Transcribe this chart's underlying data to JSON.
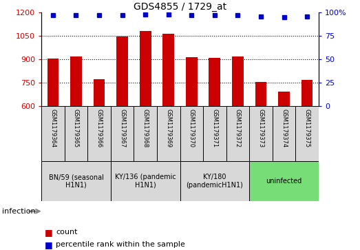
{
  "title": "GDS4855 / 1729_at",
  "samples": [
    "GSM1179364",
    "GSM1179365",
    "GSM1179366",
    "GSM1179367",
    "GSM1179368",
    "GSM1179369",
    "GSM1179370",
    "GSM1179371",
    "GSM1179372",
    "GSM1179373",
    "GSM1179374",
    "GSM1179375"
  ],
  "counts": [
    905,
    920,
    775,
    1045,
    1080,
    1065,
    915,
    910,
    920,
    755,
    695,
    770
  ],
  "percentiles": [
    97,
    97,
    97,
    97,
    98,
    98,
    97,
    97,
    97,
    96,
    95,
    96
  ],
  "ylim_left": [
    600,
    1200
  ],
  "ylim_right": [
    0,
    100
  ],
  "yticks_left": [
    600,
    750,
    900,
    1050,
    1200
  ],
  "yticks_right": [
    0,
    25,
    50,
    75,
    100
  ],
  "bar_color": "#cc0000",
  "dot_color": "#0000cc",
  "groups": [
    {
      "label": "BN/59 (seasonal\nH1N1)",
      "start": 0,
      "end": 3,
      "color": "#d8d8d8"
    },
    {
      "label": "KY/136 (pandemic\nH1N1)",
      "start": 3,
      "end": 6,
      "color": "#d8d8d8"
    },
    {
      "label": "KY/180\n(pandemicH1N1)",
      "start": 6,
      "end": 9,
      "color": "#d8d8d8"
    },
    {
      "label": "uninfected",
      "start": 9,
      "end": 12,
      "color": "#77dd77"
    }
  ],
  "infection_label": "infection",
  "legend_count_label": "count",
  "legend_percentile_label": "percentile rank within the sample",
  "background_color": "#ffffff",
  "tick_label_color_left": "#cc0000",
  "tick_label_color_right": "#0000cc",
  "sample_cell_color": "#d8d8d8",
  "bar_width": 0.5,
  "dot_size": 5
}
